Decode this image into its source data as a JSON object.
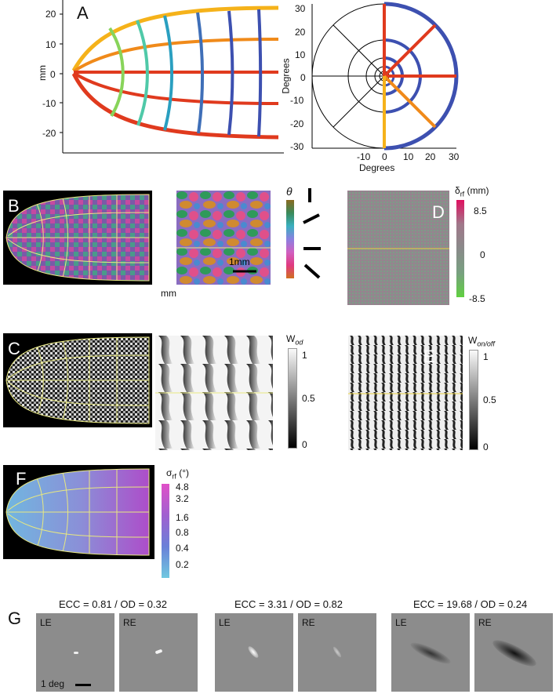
{
  "panels": {
    "A": {
      "letter": "A",
      "ylabel": "mm",
      "yticks": [
        "20",
        "10",
        "0",
        "-10",
        "-20"
      ],
      "polar": {
        "ylabel": "Degrees",
        "xlabel": "Degrees",
        "yticks": [
          "30",
          "20",
          "10",
          "0",
          "-10",
          "-20",
          "-30"
        ],
        "xticks": [
          "-10",
          "0",
          "10",
          "20",
          "30"
        ]
      },
      "colors": {
        "yellow": "#f5b21a",
        "orange": "#f08a1a",
        "red": "#e03a1e",
        "lightgreen": "#88d45a",
        "teal": "#4fc9a8",
        "cyan": "#2a9fc0",
        "blue": "#3f6fb8",
        "darkblue": "#3d50b0"
      }
    },
    "B": {
      "letter": "B",
      "xlabel": "mm",
      "scalebar": "1mm",
      "colorbar_label": "θ"
    },
    "C": {
      "letter": "C",
      "colorbar_label": "W",
      "colorbar_sub": "od",
      "cb_ticks": [
        "1",
        "0.5",
        "0"
      ]
    },
    "D": {
      "letter": "D",
      "colorbar_label": "δ",
      "colorbar_sub": "rf",
      "colorbar_unit": "(mm)",
      "cb_ticks": [
        "8.5",
        "0",
        "-8.5"
      ]
    },
    "E": {
      "letter": "E",
      "colorbar_label": "W",
      "colorbar_sub": "on/off",
      "cb_ticks": [
        "1",
        "0.5",
        "0"
      ]
    },
    "F": {
      "letter": "F",
      "colorbar_label": "σ",
      "colorbar_sub": "rf",
      "colorbar_unit": "(°)",
      "cb_ticks": [
        "4.8",
        "3.2",
        "1.6",
        "0.8",
        "0.4",
        "0.2"
      ]
    },
    "G": {
      "letter": "G",
      "groups": [
        {
          "title": "ECC = 0.81 / OD = 0.32",
          "le": "LE",
          "re": "RE"
        },
        {
          "title": "ECC = 3.31 / OD = 0.82",
          "le": "LE",
          "re": "RE"
        },
        {
          "title": "ECC = 19.68 / OD = 0.24",
          "le": "LE",
          "re": "RE"
        }
      ],
      "scalebar": "1 deg"
    }
  }
}
